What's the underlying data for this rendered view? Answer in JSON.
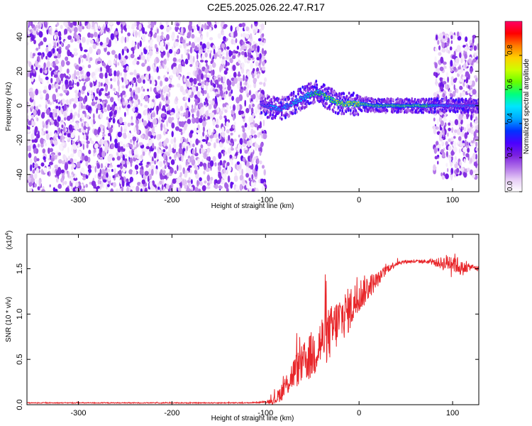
{
  "title": "C2E5.2025.026.22.47.R17",
  "colors": {
    "snr_line": "#e8262a",
    "axis": "#000000",
    "colormap": [
      "#ffffff",
      "#e6ccf5",
      "#b070e8",
      "#7a1fe0",
      "#4b00ff",
      "#0033ff",
      "#00a8ff",
      "#00e5ff",
      "#00ff7f",
      "#66ff00",
      "#ccff00",
      "#ffd000",
      "#ff7a00",
      "#ff0000",
      "#ff0066"
    ]
  },
  "chart_data": [
    {
      "type": "heatmap",
      "xlabel": "Height of straight line (km)",
      "ylabel": "Frequency (Hz)",
      "xlim": [
        -355,
        128
      ],
      "ylim": [
        -50,
        49
      ],
      "xticks": [
        -300,
        -200,
        -100,
        0,
        100
      ],
      "yticks": [
        -40,
        -20,
        0,
        20,
        40
      ],
      "colorbar": {
        "label": "Normalized spectral amplitude",
        "range": [
          0,
          1
        ],
        "ticks": [
          "0.0",
          "0.2",
          "0.4",
          "0.6",
          "0.8"
        ]
      },
      "regions": [
        {
          "x_range": [
            -355,
            -100
          ],
          "description": "broadband noise, amplitude 0.0-0.25"
        },
        {
          "x_range": [
            -100,
            80
          ],
          "description": "narrow signal band near 0 Hz, amplitude up to ~0.9"
        },
        {
          "x_range": [
            80,
            128
          ],
          "description": "broadband noise -40..40 Hz plus carrier at 0 Hz"
        }
      ],
      "signal_track": {
        "x": [
          -105,
          -95,
          -85,
          -75,
          -65,
          -55,
          -45,
          -35,
          -25,
          -15,
          -5,
          5,
          15,
          30,
          50,
          70,
          90,
          110,
          125
        ],
        "freq": [
          1,
          -1,
          -2,
          0,
          3,
          6,
          8,
          5,
          2,
          1,
          1,
          1,
          0,
          0,
          0,
          0,
          0,
          0,
          0
        ],
        "amplitude": [
          0.35,
          0.45,
          0.5,
          0.5,
          0.55,
          0.6,
          0.65,
          0.7,
          0.75,
          0.8,
          0.85,
          0.75,
          0.7,
          0.7,
          0.72,
          0.7,
          0.5,
          0.45,
          0.45
        ]
      }
    },
    {
      "type": "line",
      "xlabel": "Height of straight line (km)",
      "ylabel": "SNR (10 * v/v)",
      "yscale_label": "(x10",
      "yscale_exp": "4",
      "yscale_close": ")",
      "xlim": [
        -355,
        128
      ],
      "ylim": [
        0,
        1.88
      ],
      "xticks": [
        -300,
        -200,
        -100,
        0,
        100
      ],
      "yticks": [
        0.0,
        0.5,
        1.0,
        1.5
      ],
      "ytick_labels": [
        "0.0",
        "0.5",
        "1.0",
        "1.5"
      ],
      "series": [
        {
          "x": [
            -355,
            -300,
            -200,
            -120,
            -100,
            -90,
            -80,
            -70,
            -60,
            -50,
            -40,
            -30,
            -20,
            -10,
            0,
            10,
            20,
            30,
            40,
            50,
            60,
            70,
            80,
            90,
            100,
            110,
            120,
            128
          ],
          "values": [
            0.02,
            0.02,
            0.02,
            0.02,
            0.03,
            0.05,
            0.18,
            0.35,
            0.45,
            0.55,
            0.7,
            0.8,
            0.95,
            1.05,
            1.2,
            1.3,
            1.38,
            1.5,
            1.56,
            1.58,
            1.58,
            1.58,
            1.57,
            1.56,
            1.58,
            1.5,
            1.52,
            1.5
          ],
          "noise": [
            0.005,
            0.005,
            0.005,
            0.005,
            0.01,
            0.05,
            0.12,
            0.18,
            0.22,
            0.28,
            0.3,
            0.3,
            0.28,
            0.25,
            0.2,
            0.15,
            0.08,
            0.05,
            0.03,
            0.02,
            0.02,
            0.02,
            0.03,
            0.08,
            0.12,
            0.08,
            0.03,
            0.03
          ]
        }
      ]
    }
  ]
}
